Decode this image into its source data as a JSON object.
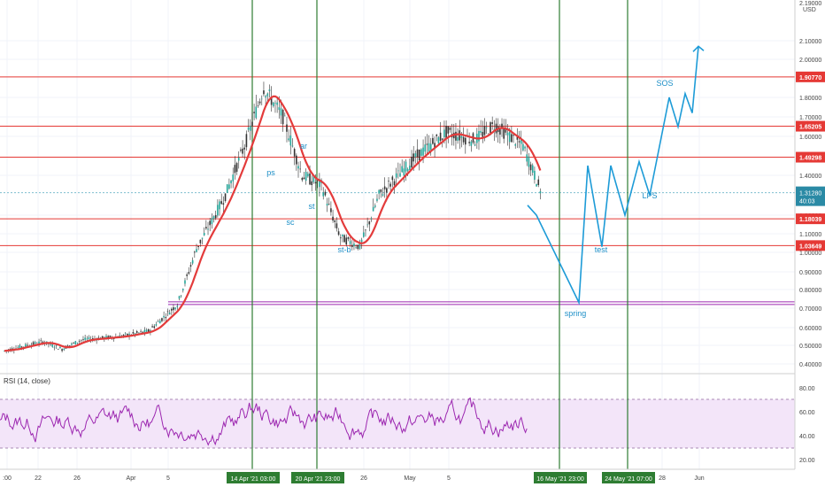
{
  "chart_data": [
    {
      "type": "line",
      "currency": "USD",
      "y_ticks": [
        "2.10000",
        "2.00000",
        "1.80000",
        "1.70000",
        "1.60000",
        "1.40000",
        "1.20000",
        "1.10000",
        "1.00000",
        "0.90000",
        "0.80000",
        "0.70000",
        "0.60000",
        "0.50000",
        "0.40000"
      ],
      "top_tick_partial": "2.19000",
      "x_ticks": [
        ":00",
        "22",
        "26",
        "Apr",
        "5",
        "26",
        "May",
        "5",
        "28",
        "Jun"
      ],
      "price_labels": [
        {
          "text": "1.90770",
          "value": 1.9077,
          "color": "#e53935"
        },
        {
          "text": "1.65205",
          "value": 1.65205,
          "color": "#e53935"
        },
        {
          "text": "1.49298",
          "value": 1.49298,
          "color": "#e53935"
        },
        {
          "text": "1.18039",
          "value": 1.18039,
          "color": "#e53935"
        },
        {
          "text": "1.03649",
          "value": 1.03649,
          "color": "#e53935"
        }
      ],
      "current_price": {
        "text": "1.31280",
        "countdown": "40:03",
        "value": 1.3128,
        "color": "#2a8aa5"
      },
      "horizontal_levels": [
        1.9077,
        1.65205,
        1.49298,
        1.18039,
        1.03649
      ],
      "support_line": 0.727,
      "vertical_markers": [
        {
          "label": "14 Apr '21  03:00",
          "x_pos": "14 Apr"
        },
        {
          "label": "20 Apr '21  23:00",
          "x_pos": "20 Apr"
        },
        {
          "label": "16 May '21  23:00",
          "x_pos": "16 May"
        },
        {
          "label": "24 May '21  07:00",
          "x_pos": "24 May"
        }
      ],
      "annotations": [
        "ps",
        "ar",
        "sc",
        "st",
        "st-b",
        "test",
        "spring",
        "LPS",
        "SOS"
      ],
      "price_path_approx": [
        {
          "x": "18 Mar",
          "y": 0.47
        },
        {
          "x": "22 Mar",
          "y": 0.52
        },
        {
          "x": "24 Mar",
          "y": 0.48
        },
        {
          "x": "26 Mar",
          "y": 0.53
        },
        {
          "x": "30 Mar",
          "y": 0.55
        },
        {
          "x": "2 Apr",
          "y": 0.58
        },
        {
          "x": "5 Apr",
          "y": 0.72
        },
        {
          "x": "7 Apr",
          "y": 1.02
        },
        {
          "x": "10 Apr",
          "y": 1.3
        },
        {
          "x": "12 Apr",
          "y": 1.55
        },
        {
          "x": "14 Apr",
          "y": 1.85
        },
        {
          "x": "16 Apr",
          "y": 1.7
        },
        {
          "x": "18 Apr",
          "y": 1.4
        },
        {
          "x": "20 Apr",
          "y": 1.35
        },
        {
          "x": "22 Apr",
          "y": 1.08
        },
        {
          "x": "24 Apr",
          "y": 1.03
        },
        {
          "x": "26 Apr",
          "y": 1.3
        },
        {
          "x": "30 Apr",
          "y": 1.5
        },
        {
          "x": "3 May",
          "y": 1.62
        },
        {
          "x": "6 May",
          "y": 1.58
        },
        {
          "x": "8 May",
          "y": 1.66
        },
        {
          "x": "11 May",
          "y": 1.55
        },
        {
          "x": "13 May",
          "y": 1.3
        }
      ],
      "projection_path": [
        {
          "x": "13 May",
          "y": 1.25
        },
        {
          "x": "16 May",
          "y": 1.2
        },
        {
          "x": "18 May",
          "y": 0.73
        },
        {
          "x": "20 May",
          "y": 1.45
        },
        {
          "x": "22 May",
          "y": 1.03
        },
        {
          "x": "24 May",
          "y": 1.45
        },
        {
          "x": "26 May",
          "y": 1.2
        },
        {
          "x": "28 May",
          "y": 1.47
        },
        {
          "x": "30 May",
          "y": 1.3
        },
        {
          "x": "1 Jun",
          "y": 1.8
        },
        {
          "x": "2 Jun",
          "y": 1.65
        },
        {
          "x": "3 Jun",
          "y": 1.82
        },
        {
          "x": "4 Jun",
          "y": 1.72
        },
        {
          "x": "5 Jun",
          "y": 2.07
        }
      ]
    },
    {
      "type": "line",
      "title": "RSI (14, close)",
      "y_ticks": [
        "80.00",
        "60.00",
        "40.00",
        "20.00"
      ],
      "band": [
        30,
        70
      ]
    }
  ]
}
